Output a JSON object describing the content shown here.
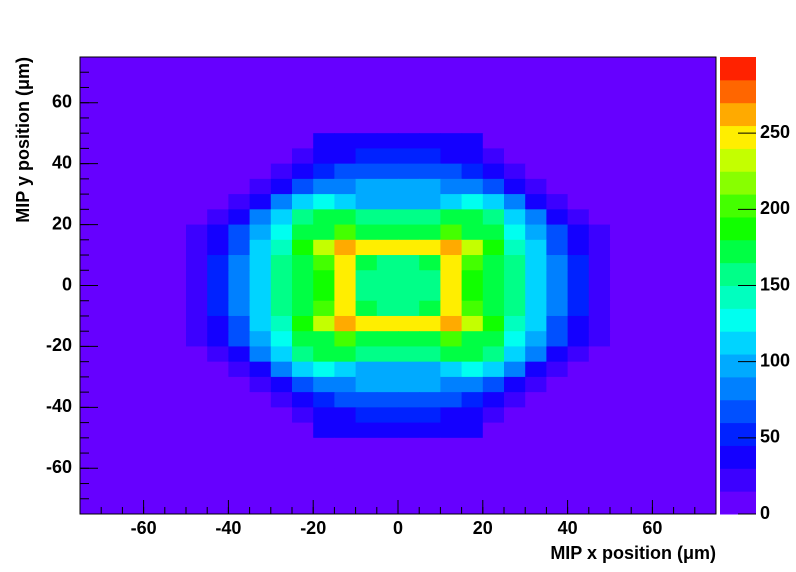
{
  "chart_data": {
    "type": "heatmap",
    "x_label": "MIP x position (μm)",
    "y_label": "MIP y position (μm)",
    "xlim": [
      -75,
      75
    ],
    "ylim": [
      -75,
      75
    ],
    "xticks": [
      -60,
      -40,
      -20,
      0,
      20,
      40,
      60
    ],
    "yticks": [
      -60,
      -40,
      -20,
      0,
      20,
      40,
      60
    ],
    "zlim": [
      0,
      300
    ],
    "zticks": [
      0,
      50,
      100,
      150,
      200,
      250
    ],
    "palette": [
      "#6600ff",
      "#3c00ff",
      "#1400ff",
      "#0022ff",
      "#0050ff",
      "#0080ff",
      "#00aaff",
      "#00d4ff",
      "#00fff0",
      "#00ffbf",
      "#00ff88",
      "#00ff44",
      "#11ff00",
      "#44ff00",
      "#88ff00",
      "#c4ff00",
      "#ffee00",
      "#ffaa00",
      "#ff6600",
      "#ff2200"
    ],
    "z": [
      [
        8,
        8,
        8,
        8,
        8,
        8,
        8,
        8,
        8,
        8,
        8,
        8,
        8,
        8,
        8,
        8,
        8,
        8,
        8,
        8,
        8,
        8,
        8,
        8,
        8,
        8,
        8,
        8,
        8,
        8
      ],
      [
        8,
        8,
        8,
        8,
        8,
        8,
        8,
        8,
        8,
        8,
        8,
        8,
        8,
        8,
        8,
        8,
        8,
        8,
        8,
        8,
        8,
        8,
        8,
        8,
        8,
        8,
        8,
        8,
        8,
        8
      ],
      [
        8,
        8,
        8,
        8,
        8,
        8,
        8,
        8,
        8,
        8,
        8,
        8,
        8,
        8,
        8,
        8,
        8,
        8,
        8,
        8,
        8,
        8,
        8,
        8,
        8,
        8,
        8,
        8,
        8,
        8
      ],
      [
        8,
        8,
        8,
        8,
        8,
        8,
        8,
        8,
        8,
        8,
        8,
        8,
        8,
        8,
        8,
        8,
        8,
        8,
        8,
        8,
        8,
        8,
        8,
        8,
        8,
        8,
        8,
        8,
        8,
        8
      ],
      [
        8,
        8,
        8,
        8,
        8,
        8,
        8,
        8,
        8,
        8,
        8,
        8,
        8,
        8,
        8,
        8,
        8,
        8,
        8,
        8,
        8,
        8,
        8,
        8,
        8,
        8,
        8,
        8,
        8,
        8
      ],
      [
        8,
        8,
        8,
        8,
        8,
        8,
        8,
        8,
        8,
        8,
        8,
        35,
        35,
        35,
        35,
        35,
        35,
        35,
        35,
        8,
        8,
        8,
        8,
        8,
        8,
        8,
        8,
        8,
        8,
        8
      ],
      [
        8,
        8,
        8,
        8,
        8,
        8,
        8,
        8,
        8,
        8,
        25,
        38,
        40,
        50,
        50,
        50,
        50,
        40,
        38,
        25,
        8,
        8,
        8,
        8,
        8,
        8,
        8,
        8,
        8,
        8
      ],
      [
        8,
        8,
        8,
        8,
        8,
        8,
        8,
        8,
        8,
        25,
        38,
        50,
        65,
        65,
        65,
        65,
        65,
        65,
        50,
        38,
        25,
        8,
        8,
        8,
        8,
        8,
        8,
        8,
        8,
        8
      ],
      [
        8,
        8,
        8,
        8,
        8,
        8,
        8,
        8,
        25,
        38,
        60,
        80,
        85,
        95,
        95,
        95,
        95,
        85,
        80,
        60,
        38,
        25,
        8,
        8,
        8,
        8,
        8,
        8,
        8,
        8
      ],
      [
        8,
        8,
        8,
        8,
        8,
        8,
        8,
        25,
        40,
        75,
        105,
        125,
        110,
        100,
        100,
        100,
        100,
        110,
        125,
        105,
        75,
        40,
        25,
        8,
        8,
        8,
        8,
        8,
        8,
        8
      ],
      [
        8,
        8,
        8,
        8,
        8,
        8,
        25,
        40,
        80,
        115,
        150,
        175,
        165,
        160,
        160,
        160,
        160,
        165,
        175,
        150,
        115,
        80,
        40,
        25,
        8,
        8,
        8,
        8,
        8,
        8
      ],
      [
        8,
        8,
        8,
        8,
        8,
        25,
        40,
        65,
        100,
        125,
        165,
        175,
        205,
        175,
        170,
        170,
        175,
        205,
        175,
        165,
        125,
        100,
        65,
        40,
        25,
        8,
        8,
        8,
        8,
        8
      ],
      [
        8,
        8,
        8,
        8,
        8,
        25,
        40,
        70,
        105,
        140,
        180,
        230,
        265,
        245,
        245,
        245,
        245,
        265,
        230,
        180,
        140,
        105,
        70,
        40,
        25,
        8,
        8,
        8,
        8,
        8
      ],
      [
        8,
        8,
        8,
        8,
        8,
        25,
        45,
        80,
        110,
        150,
        175,
        200,
        240,
        165,
        160,
        160,
        165,
        240,
        200,
        175,
        150,
        110,
        80,
        45,
        25,
        8,
        8,
        8,
        8,
        8
      ],
      [
        8,
        8,
        8,
        8,
        8,
        25,
        45,
        80,
        110,
        150,
        175,
        190,
        240,
        160,
        160,
        160,
        160,
        240,
        190,
        175,
        150,
        110,
        80,
        45,
        25,
        8,
        8,
        8,
        8,
        8
      ],
      [
        8,
        8,
        8,
        8,
        8,
        25,
        45,
        80,
        110,
        150,
        175,
        190,
        240,
        160,
        160,
        160,
        160,
        240,
        190,
        175,
        150,
        110,
        80,
        45,
        25,
        8,
        8,
        8,
        8,
        8
      ],
      [
        8,
        8,
        8,
        8,
        8,
        25,
        45,
        80,
        110,
        150,
        175,
        200,
        240,
        165,
        160,
        160,
        165,
        240,
        200,
        175,
        150,
        110,
        80,
        45,
        25,
        8,
        8,
        8,
        8,
        8
      ],
      [
        8,
        8,
        8,
        8,
        8,
        25,
        40,
        70,
        105,
        140,
        180,
        230,
        265,
        245,
        245,
        245,
        245,
        265,
        230,
        180,
        140,
        105,
        70,
        40,
        25,
        8,
        8,
        8,
        8,
        8
      ],
      [
        8,
        8,
        8,
        8,
        8,
        25,
        40,
        65,
        100,
        125,
        165,
        175,
        205,
        175,
        170,
        170,
        175,
        205,
        175,
        165,
        125,
        100,
        65,
        40,
        25,
        8,
        8,
        8,
        8,
        8
      ],
      [
        8,
        8,
        8,
        8,
        8,
        8,
        25,
        40,
        80,
        115,
        150,
        175,
        165,
        160,
        160,
        160,
        160,
        165,
        175,
        150,
        115,
        80,
        40,
        25,
        8,
        8,
        8,
        8,
        8,
        8
      ],
      [
        8,
        8,
        8,
        8,
        8,
        8,
        8,
        25,
        40,
        75,
        105,
        125,
        110,
        100,
        100,
        100,
        100,
        110,
        125,
        105,
        75,
        40,
        25,
        8,
        8,
        8,
        8,
        8,
        8,
        8
      ],
      [
        8,
        8,
        8,
        8,
        8,
        8,
        8,
        8,
        25,
        38,
        60,
        80,
        85,
        95,
        95,
        95,
        95,
        85,
        80,
        60,
        38,
        25,
        8,
        8,
        8,
        8,
        8,
        8,
        8,
        8
      ],
      [
        8,
        8,
        8,
        8,
        8,
        8,
        8,
        8,
        8,
        25,
        38,
        50,
        65,
        65,
        65,
        65,
        65,
        65,
        50,
        38,
        25,
        8,
        8,
        8,
        8,
        8,
        8,
        8,
        8,
        8
      ],
      [
        8,
        8,
        8,
        8,
        8,
        8,
        8,
        8,
        8,
        8,
        25,
        38,
        40,
        50,
        50,
        50,
        50,
        40,
        38,
        25,
        8,
        8,
        8,
        8,
        8,
        8,
        8,
        8,
        8,
        8
      ],
      [
        8,
        8,
        8,
        8,
        8,
        8,
        8,
        8,
        8,
        8,
        8,
        35,
        35,
        35,
        35,
        35,
        35,
        35,
        35,
        8,
        8,
        8,
        8,
        8,
        8,
        8,
        8,
        8,
        8,
        8
      ],
      [
        8,
        8,
        8,
        8,
        8,
        8,
        8,
        8,
        8,
        8,
        8,
        8,
        8,
        8,
        8,
        8,
        8,
        8,
        8,
        8,
        8,
        8,
        8,
        8,
        8,
        8,
        8,
        8,
        8,
        8
      ],
      [
        8,
        8,
        8,
        8,
        8,
        8,
        8,
        8,
        8,
        8,
        8,
        8,
        8,
        8,
        8,
        8,
        8,
        8,
        8,
        8,
        8,
        8,
        8,
        8,
        8,
        8,
        8,
        8,
        8,
        8
      ],
      [
        8,
        8,
        8,
        8,
        8,
        8,
        8,
        8,
        8,
        8,
        8,
        8,
        8,
        8,
        8,
        8,
        8,
        8,
        8,
        8,
        8,
        8,
        8,
        8,
        8,
        8,
        8,
        8,
        8,
        8
      ],
      [
        8,
        8,
        8,
        8,
        8,
        8,
        8,
        8,
        8,
        8,
        8,
        8,
        8,
        8,
        8,
        8,
        8,
        8,
        8,
        8,
        8,
        8,
        8,
        8,
        8,
        8,
        8,
        8,
        8,
        8
      ],
      [
        8,
        8,
        8,
        8,
        8,
        8,
        8,
        8,
        8,
        8,
        8,
        8,
        8,
        8,
        8,
        8,
        8,
        8,
        8,
        8,
        8,
        8,
        8,
        8,
        8,
        8,
        8,
        8,
        8,
        8
      ]
    ]
  }
}
